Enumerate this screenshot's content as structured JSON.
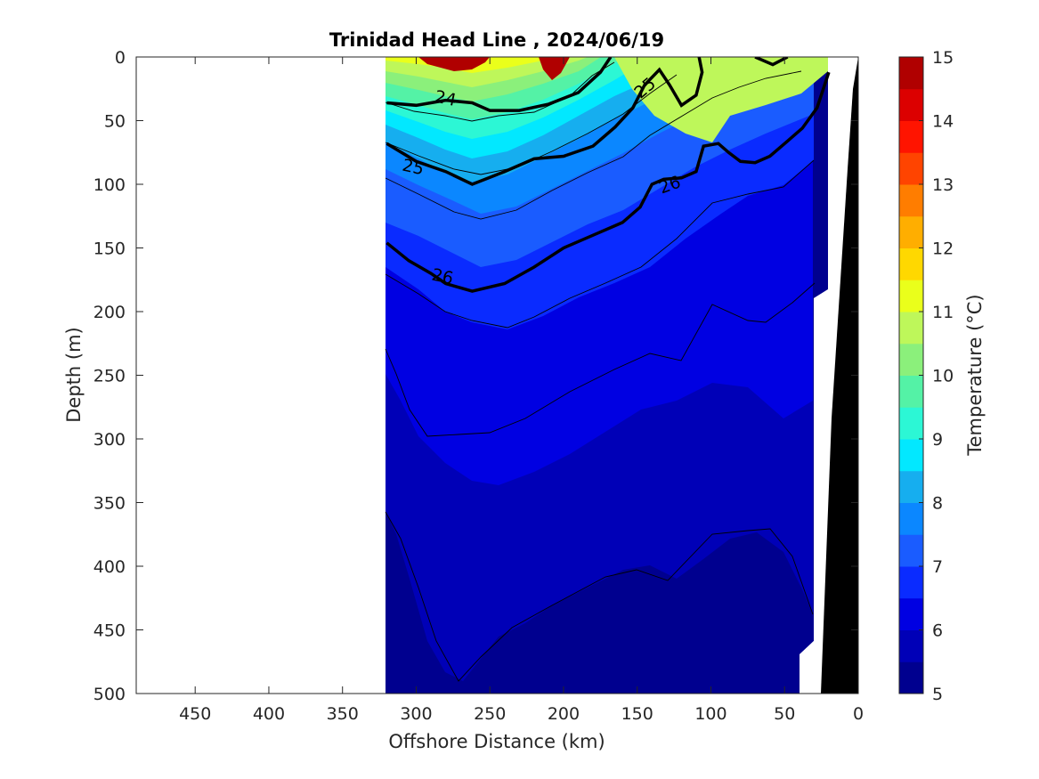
{
  "chart_data": {
    "type": "contour",
    "title": "Trinidad Head Line , 2024/06/19",
    "xlabel": "Offshore Distance (km)",
    "ylabel": "Depth (m)",
    "xlim": [
      490,
      0
    ],
    "ylim": [
      0,
      500
    ],
    "x_reversed": true,
    "y_reversed": true,
    "x_ticks": [
      "450",
      "400",
      "350",
      "300",
      "250",
      "200",
      "150",
      "100",
      "50",
      "0"
    ],
    "x_tick_values": [
      450,
      400,
      350,
      300,
      250,
      200,
      150,
      100,
      50,
      0
    ],
    "y_ticks": [
      "0",
      "50",
      "100",
      "150",
      "200",
      "250",
      "300",
      "350",
      "400",
      "450",
      "500"
    ],
    "y_tick_values": [
      0,
      50,
      100,
      150,
      200,
      250,
      300,
      350,
      400,
      450,
      500
    ],
    "section_extent_km": [
      320,
      20
    ],
    "colorbar": {
      "label": "Temperature (°C)",
      "ticks": [
        "5",
        "6",
        "7",
        "8",
        "9",
        "10",
        "11",
        "12",
        "13",
        "14",
        "15"
      ],
      "range": [
        5,
        15
      ],
      "colors": [
        "#00008f",
        "#0000b7",
        "#0000e2",
        "#0a2bff",
        "#1a5cff",
        "#0b87ff",
        "#16aeef",
        "#02e8ff",
        "#2cf7d5",
        "#54f2a6",
        "#8bf07b",
        "#bef75a",
        "#eaff1b",
        "#ffd800",
        "#ffae00",
        "#ff7d00",
        "#ff4400",
        "#ff1400",
        "#dc0000",
        "#b00000"
      ]
    },
    "isopycnal_labels": [
      {
        "text": "24",
        "x_km": 280,
        "depth_m": 32
      },
      {
        "text": "25",
        "x_km": 145,
        "depth_m": 24
      },
      {
        "text": "25",
        "x_km": 302,
        "depth_m": 86
      },
      {
        "text": "26",
        "x_km": 128,
        "depth_m": 100
      },
      {
        "text": "26",
        "x_km": 282,
        "depth_m": 172
      }
    ],
    "isopycnals_bold": [
      {
        "value": 24,
        "points": [
          [
            320,
            36
          ],
          [
            300,
            38
          ],
          [
            280,
            34
          ],
          [
            262,
            36
          ],
          [
            250,
            42
          ],
          [
            230,
            42
          ],
          [
            210,
            37
          ],
          [
            190,
            28
          ],
          [
            175,
            12
          ],
          [
            168,
            0
          ]
        ]
      },
      {
        "value": 24,
        "points": [
          [
            70,
            0
          ],
          [
            58,
            6
          ],
          [
            48,
            0
          ]
        ]
      },
      {
        "value": 25,
        "points": [
          [
            320,
            68
          ],
          [
            300,
            82
          ],
          [
            280,
            90
          ],
          [
            262,
            100
          ],
          [
            240,
            90
          ],
          [
            220,
            80
          ],
          [
            200,
            78
          ],
          [
            180,
            70
          ],
          [
            165,
            55
          ],
          [
            153,
            40
          ],
          [
            145,
            22
          ],
          [
            135,
            10
          ],
          [
            128,
            22
          ],
          [
            120,
            38
          ],
          [
            110,
            30
          ],
          [
            106,
            12
          ],
          [
            108,
            0
          ]
        ]
      },
      {
        "value": 26,
        "points": [
          [
            320,
            146
          ],
          [
            305,
            160
          ],
          [
            290,
            170
          ],
          [
            280,
            178
          ],
          [
            262,
            184
          ],
          [
            240,
            178
          ],
          [
            220,
            165
          ],
          [
            200,
            150
          ],
          [
            180,
            140
          ],
          [
            160,
            130
          ],
          [
            148,
            118
          ],
          [
            140,
            100
          ],
          [
            132,
            96
          ],
          [
            120,
            95
          ],
          [
            110,
            90
          ],
          [
            105,
            70
          ],
          [
            95,
            68
          ],
          [
            88,
            75
          ],
          [
            80,
            82
          ],
          [
            70,
            83
          ],
          [
            60,
            78
          ],
          [
            48,
            66
          ],
          [
            38,
            56
          ],
          [
            28,
            40
          ],
          [
            20,
            12
          ]
        ]
      }
    ]
  }
}
